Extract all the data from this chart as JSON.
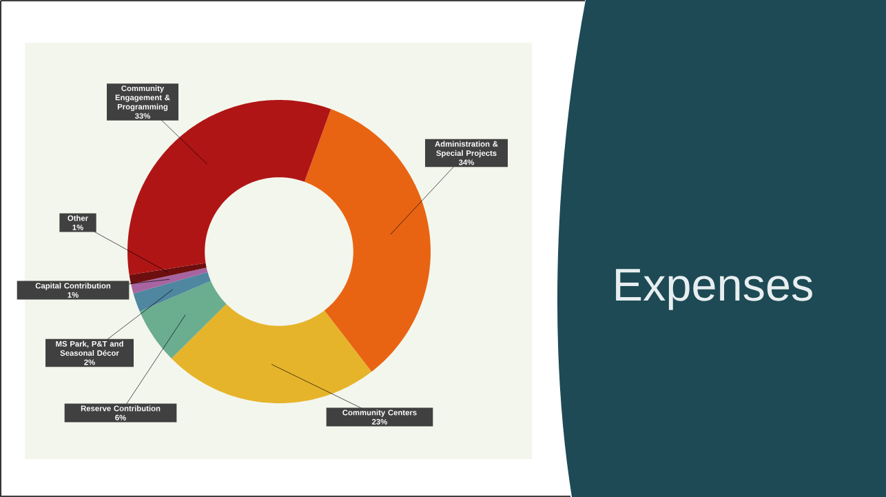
{
  "chart_data": {
    "type": "donut",
    "title": "Expenses",
    "categories": [
      "Administration & Special Projects",
      "Community Centers",
      "Reserve Contribution",
      "MS Park, P&T and Seasonal Décor",
      "Capital Contribution",
      "Other",
      "Community Engagement & Programming"
    ],
    "values": [
      34,
      23,
      6,
      2,
      1,
      1,
      33
    ],
    "value_labels": [
      "34%",
      "23%",
      "6%",
      "2%",
      "1%",
      "1%",
      "33%"
    ],
    "colors": [
      "#e86413",
      "#e6b42a",
      "#6aad8f",
      "#4f86a0",
      "#a864a0",
      "#6e0f0f",
      "#b01515"
    ]
  }
}
